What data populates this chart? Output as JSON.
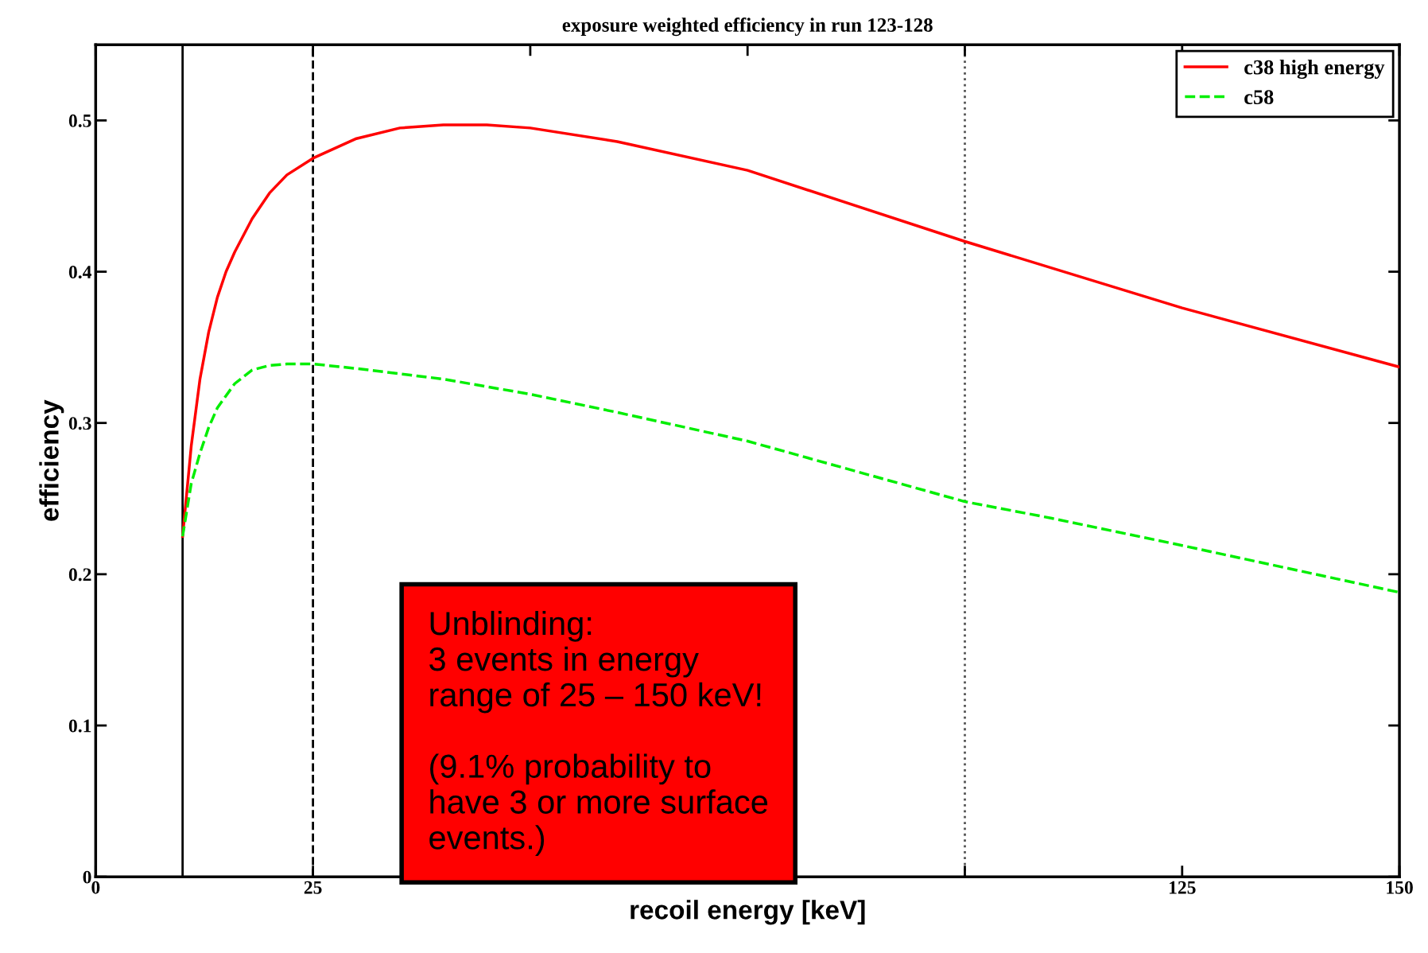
{
  "chart_data": {
    "type": "line",
    "title": "exposure weighted efficiency in run 123-128",
    "xlabel": "recoil energy [keV]",
    "ylabel": "efficiency",
    "xlim": [
      0,
      150
    ],
    "xticks": [
      0,
      25,
      {
        "value": 50,
        "label": null
      },
      {
        "value": 75,
        "label": null
      },
      {
        "value": 100,
        "label": null
      },
      125,
      150
    ],
    "ylim": [
      0,
      0.55
    ],
    "yticks": [
      0,
      0.1,
      0.2,
      0.3,
      0.4,
      0.5
    ],
    "grid": false,
    "legend": "top right",
    "series": [
      {
        "name": "c38 high energy",
        "color": "#ff0000",
        "line_style": "solid",
        "x": [
          10,
          11,
          12,
          13,
          14,
          15,
          16,
          18,
          20,
          22,
          25,
          30,
          35,
          40,
          45,
          50,
          60,
          75,
          100,
          125,
          150
        ],
        "values": [
          0.225,
          0.285,
          0.329,
          0.36,
          0.383,
          0.4,
          0.413,
          0.435,
          0.452,
          0.464,
          0.475,
          0.488,
          0.495,
          0.497,
          0.497,
          0.495,
          0.486,
          0.467,
          0.42,
          0.376,
          0.337
        ]
      },
      {
        "name": "c58",
        "color": "#00ee00",
        "line_style": "dashed",
        "x": [
          10,
          11,
          12,
          13,
          14,
          16,
          18,
          20,
          22,
          25,
          30,
          40,
          50,
          60,
          75,
          100,
          110,
          125,
          150
        ],
        "values": [
          0.225,
          0.26,
          0.28,
          0.297,
          0.31,
          0.326,
          0.335,
          0.338,
          0.339,
          0.339,
          0.336,
          0.329,
          0.319,
          0.307,
          0.288,
          0.248,
          0.237,
          0.219,
          0.188
        ]
      }
    ],
    "ref_lines": [
      {
        "axis": "x",
        "value": 10,
        "color": "#000000",
        "line_style": "solid"
      },
      {
        "axis": "x",
        "value": 25,
        "color": "#000000",
        "line_style": "dashed"
      },
      {
        "axis": "x",
        "value": 100,
        "color": "#555555",
        "line_style": "dotted"
      }
    ],
    "annotations": [
      "Unblinding:\n3 events in energy\nrange of 25 – 150 keV!\n\n(9.1% probability to\nhave 3 or more surface\nevents.)"
    ]
  }
}
